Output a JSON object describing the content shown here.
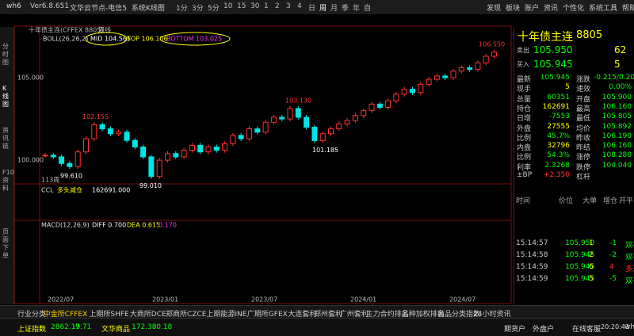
{
  "topbar": {
    "app": "wh6",
    "version": "Ver6.8.651",
    "node": "文华云节点-电信5",
    "view": "系统K线图",
    "periods": [
      "1分",
      "3分",
      "5分",
      "10",
      "15",
      "30",
      "1",
      "2",
      "3",
      "4",
      "日",
      "周",
      "月",
      "季",
      "年",
      "自"
    ],
    "menu": [
      "发现",
      "板块",
      "账户",
      "资讯",
      "个性化",
      "系统工具",
      "帮助"
    ]
  },
  "side_tabs": [
    "分时图",
    "K线图",
    "资讯链",
    "F10资料",
    "页面下单"
  ],
  "chart": {
    "header": "十年债主连(CFFEX 8805)",
    "period": "周线",
    "boll": {
      "name": "BOLL(26,26,2)",
      "mid": "MID 104.565",
      "top": "TOP 106.106",
      "bottom": "BOTTOM 103.025"
    },
    "ylim": [
      98.9,
      107.5
    ],
    "yticks": [
      {
        "value": 105,
        "label": "105.000"
      },
      {
        "value": 100,
        "label": "100.000"
      }
    ],
    "closes": [
      100.3,
      100.2,
      99.8,
      99.61,
      100.5,
      101.3,
      102.155,
      101.9,
      101.6,
      101.7,
      101.2,
      100.8,
      100.2,
      99.01,
      100.0,
      100.4,
      100.2,
      100.6,
      100.9,
      100.5,
      100.8,
      100.6,
      101.0,
      101.5,
      101.3,
      101.9,
      101.7,
      102.3,
      102.6,
      102.5,
      103.13,
      102.6,
      102.0,
      101.185,
      101.6,
      101.9,
      102.2,
      102.4,
      102.7,
      103.0,
      103.4,
      103.2,
      103.6,
      104.0,
      104.3,
      104.1,
      104.6,
      104.9,
      105.1,
      105.0,
      105.4,
      105.6,
      105.5,
      105.9,
      106.3,
      106.55
    ],
    "price_labels": [
      "106.550",
      "103.130",
      "102.155",
      "101.185",
      "99.610",
      "99.010"
    ],
    "count": "113周",
    "ccl": {
      "name": "CCL",
      "state": "多头减仓",
      "value": "162691.000"
    },
    "macd": {
      "name": "MACD(12,26,9)",
      "diff": "DIFF 0.700",
      "dea": "DEA 0.615",
      "macd": "0.170"
    },
    "dates": [
      "2022/07",
      "2023/01",
      "2023/07",
      "2024/01",
      "2024/07"
    ]
  },
  "quote": {
    "name": "十年债主连",
    "code": "8805",
    "sell": [
      "卖出",
      "105.950",
      "62"
    ],
    "buy": [
      "买入",
      "105.945",
      "5"
    ],
    "rows": [
      [
        "最新",
        "105.945",
        "涨跌",
        "-0.215/0.20%"
      ],
      [
        "现手",
        "5",
        "速效",
        "0.00%"
      ],
      [
        "总量",
        "60351",
        "开盘",
        "105.900"
      ],
      [
        "持仓",
        "162691",
        "最高",
        "106.160"
      ],
      [
        "日增",
        "-7553",
        "最低",
        "105.805"
      ],
      [
        "外盘",
        "27555",
        "均价",
        "105.892"
      ],
      [
        "比例",
        "45.7%",
        "昨收",
        "106.190"
      ],
      [
        "内盘",
        "32796",
        "昨结",
        "106.160"
      ],
      [
        "比例",
        "54.3%",
        "涨停",
        "108.280"
      ],
      [
        "利率",
        "2.3268",
        "跌停",
        "104.040"
      ],
      [
        "±BP",
        "+2.350",
        "杠杆"
      ]
    ],
    "trade_header": [
      "时间",
      "价位",
      "大单",
      "增仓",
      "开平"
    ],
    "trades": [
      [
        "15:14:57",
        "105.950",
        "1",
        "-1",
        "双平"
      ],
      [
        "15:14:58",
        "105.945",
        "2",
        "-2",
        "双平"
      ],
      [
        "15:14:59",
        "105.945",
        "6",
        "4",
        "多开"
      ],
      [
        "15:14:59",
        "105.945",
        "5",
        "-5",
        "双平"
      ]
    ]
  },
  "bottom_tabs": [
    "行业分类",
    "中金所CFFEX",
    "上期所SHFE",
    "大商所DCE",
    "郑商所CZCE",
    "上期能源INE",
    "广期所GFEX",
    "大连套利",
    "郑州套利",
    "广州套利",
    "主力合约排名",
    "品种加权排名",
    "商品分类指数",
    "24小时资讯"
  ],
  "status": {
    "index1": [
      "上证指数",
      "2862.19",
      "-7.71"
    ],
    "index2": [
      "文华商品",
      "172.38",
      "-0.18"
    ],
    "right": [
      "期货户",
      "外盘户",
      "在线客服",
      "20:20:43",
      "wh"
    ]
  }
}
